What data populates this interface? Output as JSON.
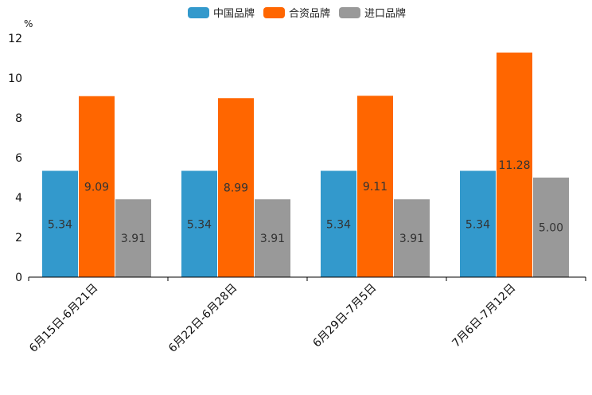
{
  "chart_data": {
    "type": "bar",
    "title": "",
    "xlabel": "",
    "ylabel": "%",
    "ylim": [
      0,
      12
    ],
    "yticks": [
      0,
      2,
      4,
      6,
      8,
      10,
      12
    ],
    "grid": false,
    "legend_position": "top-center",
    "categories": [
      "6月15日-6月21日",
      "6月22日-6月28日",
      "6月29日-7月5日",
      "7月6日-7月12日"
    ],
    "series": [
      {
        "name": "中国品牌",
        "color": "#3399CC",
        "values": [
          5.34,
          5.34,
          5.34,
          5.34
        ],
        "labels": [
          "5.34",
          "5.34",
          "5.34",
          "5.34"
        ]
      },
      {
        "name": "合资品牌",
        "color": "#FF6600",
        "values": [
          9.09,
          8.99,
          9.11,
          11.28
        ],
        "labels": [
          "9.09",
          "8.99",
          "9.11",
          "11.28"
        ]
      },
      {
        "name": "进口品牌",
        "color": "#999999",
        "values": [
          3.91,
          3.91,
          3.91,
          5.0
        ],
        "labels": [
          "3.91",
          "3.91",
          "3.91",
          "5.00"
        ]
      }
    ]
  }
}
